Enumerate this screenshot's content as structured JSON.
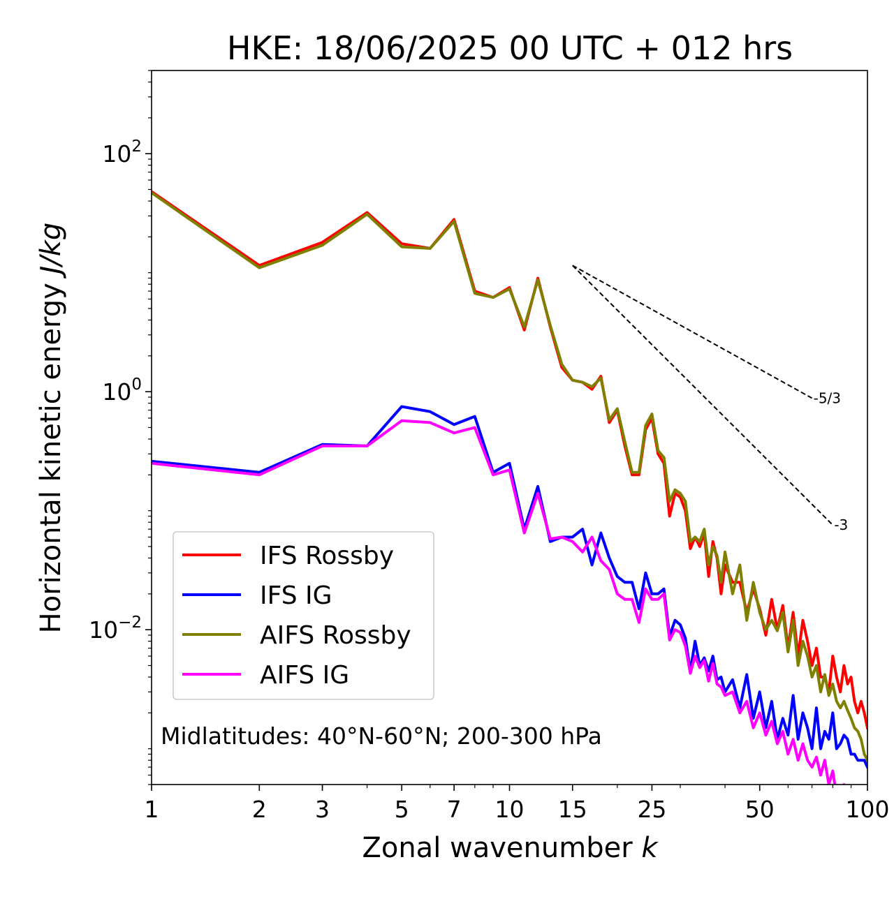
{
  "chart_data": {
    "type": "line",
    "title": "HKE: 18/06/2025 00 UTC + 012 hrs",
    "xlabel": "Zonal wavenumber",
    "xlabel_var": "k",
    "ylabel": "Horizontal kinetic energy",
    "ylabel_unit": "J/kg",
    "xscale": "log",
    "yscale": "log",
    "xlim": [
      1,
      100
    ],
    "ylim": [
      0.0005,
      500
    ],
    "xticks": [
      1,
      2,
      3,
      5,
      7,
      10,
      15,
      25,
      50,
      100
    ],
    "xtick_labels": [
      "1",
      "2",
      "3",
      "5",
      "7",
      "10",
      "15",
      "25",
      "50",
      "100"
    ],
    "yticks": [
      0.01,
      1,
      100
    ],
    "ytick_labels": [
      {
        "base": "10",
        "exp": "−2"
      },
      {
        "base": "10",
        "exp": "0"
      },
      {
        "base": "10",
        "exp": "2"
      }
    ],
    "grid": false,
    "legend_position": "lower-left",
    "annotation": "Midlatitudes: 40°N-60°N; 200-300 hPa",
    "reference_lines": [
      {
        "label": "-5/3",
        "slope": -1.6667,
        "x": [
          15,
          70
        ],
        "y0": 11.5
      },
      {
        "label": "-3",
        "slope": -3,
        "x": [
          15,
          80
        ],
        "y0": 11.5
      }
    ],
    "series": [
      {
        "name": "IFS Rossby",
        "color": "#ff0000",
        "x": [
          1,
          2,
          3,
          4,
          5,
          6,
          7,
          8,
          9,
          10,
          11,
          12,
          13,
          14,
          15,
          16,
          17,
          18,
          19,
          20,
          21,
          22,
          23,
          24,
          25,
          26,
          27,
          28,
          29,
          30,
          31,
          32,
          33,
          34,
          35,
          36,
          37,
          38,
          39,
          40,
          42,
          44,
          46,
          48,
          50,
          52,
          54,
          56,
          58,
          60,
          62,
          64,
          66,
          68,
          70,
          72,
          74,
          76,
          78,
          80,
          82,
          84,
          86,
          88,
          90,
          92,
          94,
          96,
          98,
          100
        ],
        "y": [
          48,
          11.5,
          18,
          32,
          17.5,
          16,
          28,
          7.0,
          6.2,
          7.5,
          3.3,
          9.0,
          3.5,
          1.6,
          1.25,
          1.2,
          1.05,
          1.35,
          0.55,
          0.7,
          0.35,
          0.2,
          0.2,
          0.48,
          0.6,
          0.3,
          0.25,
          0.09,
          0.14,
          0.13,
          0.1,
          0.048,
          0.06,
          0.05,
          0.065,
          0.028,
          0.055,
          0.04,
          0.02,
          0.035,
          0.025,
          0.025,
          0.014,
          0.022,
          0.015,
          0.009,
          0.018,
          0.01,
          0.016,
          0.007,
          0.014,
          0.006,
          0.012,
          0.008,
          0.005,
          0.007,
          0.004,
          0.004,
          0.003,
          0.006,
          0.004,
          0.003,
          0.005,
          0.0035,
          0.004,
          0.0025,
          0.002,
          0.0025,
          0.002,
          0.0015
        ]
      },
      {
        "name": "IFS IG",
        "color": "#0000ff",
        "x": [
          1,
          2,
          3,
          4,
          5,
          6,
          7,
          8,
          9,
          10,
          11,
          12,
          13,
          14,
          15,
          16,
          17,
          18,
          19,
          20,
          21,
          22,
          23,
          24,
          25,
          26,
          27,
          28,
          29,
          30,
          31,
          32,
          33,
          34,
          35,
          36,
          37,
          38,
          39,
          40,
          42,
          44,
          46,
          48,
          50,
          52,
          54,
          56,
          58,
          60,
          62,
          64,
          66,
          68,
          70,
          72,
          74,
          76,
          78,
          80,
          82,
          84,
          86,
          88,
          90,
          92,
          94,
          96,
          98,
          100
        ],
        "y": [
          0.26,
          0.21,
          0.36,
          0.35,
          0.75,
          0.68,
          0.53,
          0.62,
          0.21,
          0.25,
          0.07,
          0.16,
          0.055,
          0.06,
          0.06,
          0.07,
          0.035,
          0.065,
          0.04,
          0.028,
          0.025,
          0.025,
          0.015,
          0.03,
          0.02,
          0.02,
          0.022,
          0.0088,
          0.012,
          0.011,
          0.0085,
          0.0045,
          0.008,
          0.005,
          0.0058,
          0.0045,
          0.006,
          0.0038,
          0.004,
          0.003,
          0.0038,
          0.0022,
          0.0042,
          0.0018,
          0.003,
          0.0015,
          0.0025,
          0.0012,
          0.0018,
          0.0013,
          0.0028,
          0.0012,
          0.002,
          0.0015,
          0.001,
          0.0022,
          0.001,
          0.0014,
          0.0012,
          0.002,
          0.001,
          0.0011,
          0.0013,
          0.0012,
          0.0009,
          0.0009,
          0.0008,
          0.0008,
          0.0008,
          0.0007
        ]
      },
      {
        "name": "AIFS Rossby",
        "color": "#808000",
        "x": [
          1,
          2,
          3,
          4,
          5,
          6,
          7,
          8,
          9,
          10,
          11,
          12,
          13,
          14,
          15,
          16,
          17,
          18,
          19,
          20,
          21,
          22,
          23,
          24,
          25,
          26,
          27,
          28,
          29,
          30,
          31,
          32,
          33,
          34,
          35,
          36,
          37,
          38,
          39,
          40,
          42,
          44,
          46,
          48,
          50,
          52,
          54,
          56,
          58,
          60,
          62,
          64,
          66,
          68,
          70,
          72,
          74,
          76,
          78,
          80,
          82,
          84,
          86,
          88,
          90,
          92,
          94,
          96,
          98,
          100
        ],
        "y": [
          47,
          11,
          17,
          31,
          16.5,
          16,
          27,
          6.7,
          6.2,
          7.3,
          3.5,
          8.7,
          3.6,
          1.7,
          1.25,
          1.2,
          1.1,
          1.3,
          0.58,
          0.72,
          0.38,
          0.21,
          0.21,
          0.52,
          0.65,
          0.32,
          0.28,
          0.12,
          0.15,
          0.14,
          0.12,
          0.055,
          0.06,
          0.055,
          0.07,
          0.035,
          0.05,
          0.042,
          0.025,
          0.045,
          0.02,
          0.035,
          0.012,
          0.025,
          0.014,
          0.01,
          0.012,
          0.0098,
          0.014,
          0.0065,
          0.012,
          0.005,
          0.008,
          0.006,
          0.004,
          0.005,
          0.003,
          0.0042,
          0.0028,
          0.0035,
          0.0025,
          0.0022,
          0.0025,
          0.0021,
          0.0018,
          0.0015,
          0.0014,
          0.0012,
          0.0009,
          0.0008
        ]
      },
      {
        "name": "AIFS IG",
        "color": "#ff00ff",
        "x": [
          1,
          2,
          3,
          4,
          5,
          6,
          7,
          8,
          9,
          10,
          11,
          12,
          13,
          14,
          15,
          16,
          17,
          18,
          19,
          20,
          21,
          22,
          23,
          24,
          25,
          26,
          27,
          28,
          29,
          30,
          31,
          32,
          33,
          34,
          35,
          36,
          37,
          38,
          39,
          40,
          42,
          44,
          46,
          48,
          50,
          52,
          54,
          56,
          58,
          60,
          62,
          64,
          66,
          68,
          70,
          72,
          74,
          76,
          78,
          80,
          82,
          84,
          86,
          88,
          90
        ],
        "y": [
          0.25,
          0.2,
          0.35,
          0.35,
          0.57,
          0.55,
          0.45,
          0.5,
          0.2,
          0.22,
          0.065,
          0.14,
          0.058,
          0.06,
          0.055,
          0.045,
          0.06,
          0.038,
          0.032,
          0.02,
          0.018,
          0.018,
          0.0115,
          0.022,
          0.018,
          0.018,
          0.02,
          0.0082,
          0.01,
          0.0095,
          0.0073,
          0.0043,
          0.006,
          0.0048,
          0.0055,
          0.0037,
          0.0052,
          0.0035,
          0.0033,
          0.0028,
          0.003,
          0.002,
          0.0025,
          0.0015,
          0.002,
          0.0013,
          0.0017,
          0.0011,
          0.0014,
          0.0009,
          0.0012,
          0.0008,
          0.0011,
          0.0008,
          0.0007,
          0.00085,
          0.0006,
          0.0008,
          0.0005,
          0.00065,
          0.0004,
          0.0004,
          0.0005,
          0.0004,
          0.0004
        ]
      }
    ]
  }
}
